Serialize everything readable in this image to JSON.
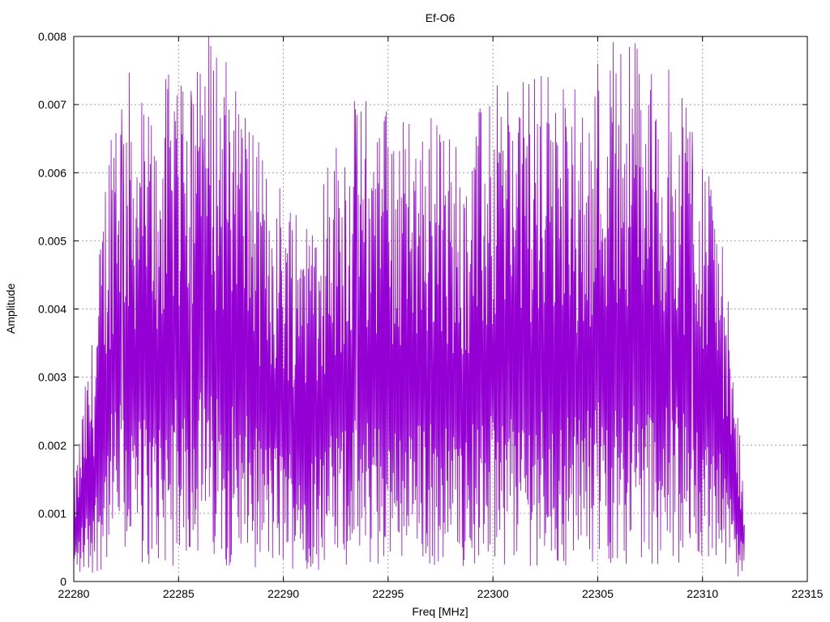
{
  "chart_data": {
    "type": "line",
    "title": "Ef-O6",
    "xlabel": "Freq [MHz]",
    "ylabel": "Amplitude",
    "xlim": [
      22280,
      22315
    ],
    "ylim": [
      0,
      0.008
    ],
    "x_ticks": [
      "22280",
      "22285",
      "22290",
      "22295",
      "22300",
      "22305",
      "22310",
      "22315"
    ],
    "y_ticks": [
      "0",
      "0.001",
      "0.002",
      "0.003",
      "0.004",
      "0.005",
      "0.006",
      "0.007",
      "0.008"
    ],
    "grid": true,
    "series": [
      {
        "color": "#9400d3",
        "x_start": 22280,
        "x_end": 22312,
        "note_peaks_approx": [
          [
            22282.3,
            0.00615
          ],
          [
            22284.8,
            0.0069
          ],
          [
            22285.6,
            0.0072
          ],
          [
            22286.2,
            0.0065
          ],
          [
            22293.5,
            0.00685
          ],
          [
            22294.9,
            0.0069
          ],
          [
            22297.5,
            0.00645
          ],
          [
            22301.3,
            0.0068
          ],
          [
            22306.0,
            0.0067
          ],
          [
            22306.8,
            0.0079
          ],
          [
            22308.5,
            0.0066
          ],
          [
            22309.5,
            0.0066
          ]
        ],
        "envelope": [
          [
            22280.0,
            0.0008
          ],
          [
            22280.5,
            0.0016
          ],
          [
            22281.0,
            0.0022
          ],
          [
            22281.5,
            0.0035
          ],
          [
            22282.0,
            0.0045
          ],
          [
            22283.0,
            0.0042
          ],
          [
            22284.0,
            0.004
          ],
          [
            22285.0,
            0.0046
          ],
          [
            22286.0,
            0.0048
          ],
          [
            22287.0,
            0.0046
          ],
          [
            22288.0,
            0.0042
          ],
          [
            22289.0,
            0.0036
          ],
          [
            22290.0,
            0.0034
          ],
          [
            22291.0,
            0.0033
          ],
          [
            22292.0,
            0.0035
          ],
          [
            22293.0,
            0.004
          ],
          [
            22294.0,
            0.0041
          ],
          [
            22295.0,
            0.004
          ],
          [
            22296.0,
            0.0039
          ],
          [
            22297.0,
            0.004
          ],
          [
            22298.0,
            0.0038
          ],
          [
            22299.0,
            0.0039
          ],
          [
            22300.0,
            0.0041
          ],
          [
            22301.0,
            0.0044
          ],
          [
            22302.0,
            0.0044
          ],
          [
            22303.0,
            0.0042
          ],
          [
            22304.0,
            0.0042
          ],
          [
            22305.0,
            0.0045
          ],
          [
            22306.0,
            0.0047
          ],
          [
            22307.0,
            0.0046
          ],
          [
            22308.0,
            0.0043
          ],
          [
            22309.0,
            0.0043
          ],
          [
            22310.0,
            0.0039
          ],
          [
            22310.7,
            0.0034
          ],
          [
            22311.2,
            0.0024
          ],
          [
            22311.7,
            0.0014
          ],
          [
            22312.0,
            0.0008
          ]
        ]
      }
    ]
  }
}
